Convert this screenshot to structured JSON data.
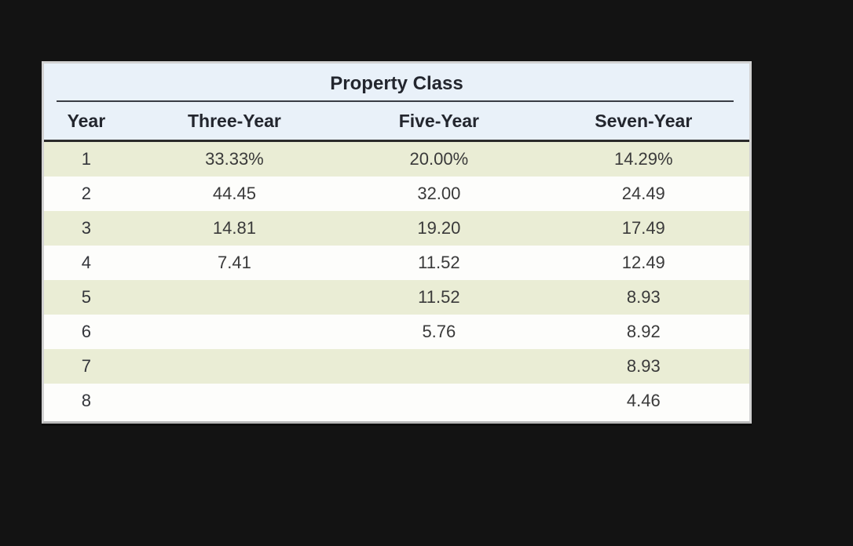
{
  "page": {
    "background": "#131313"
  },
  "chart_data": {
    "type": "table",
    "title": "Property Class",
    "columns": [
      "Year",
      "Three-Year",
      "Five-Year",
      "Seven-Year"
    ],
    "rows": [
      {
        "year": "1",
        "three_year": "33.33%",
        "five_year": "20.00%",
        "seven_year": "14.29%"
      },
      {
        "year": "2",
        "three_year": "44.45",
        "five_year": "32.00",
        "seven_year": "24.49"
      },
      {
        "year": "3",
        "three_year": "14.81",
        "five_year": "19.20",
        "seven_year": "17.49"
      },
      {
        "year": "4",
        "three_year": "7.41",
        "five_year": "11.52",
        "seven_year": "12.49"
      },
      {
        "year": "5",
        "three_year": "",
        "five_year": "11.52",
        "seven_year": "8.93"
      },
      {
        "year": "6",
        "three_year": "",
        "five_year": "5.76",
        "seven_year": "8.92"
      },
      {
        "year": "7",
        "three_year": "",
        "five_year": "",
        "seven_year": "8.93"
      },
      {
        "year": "8",
        "three_year": "",
        "five_year": "",
        "seven_year": "4.46"
      }
    ],
    "layout": {
      "header_background": "#e9f1f9",
      "alt_row_background": "#eaedd5",
      "row_background": "#fdfdfb",
      "outer_border": "#d2d2d2",
      "rule_color": "#2b2b2b",
      "header_text_color": "#23262e",
      "cell_text_color": "#3a3a3a"
    }
  }
}
